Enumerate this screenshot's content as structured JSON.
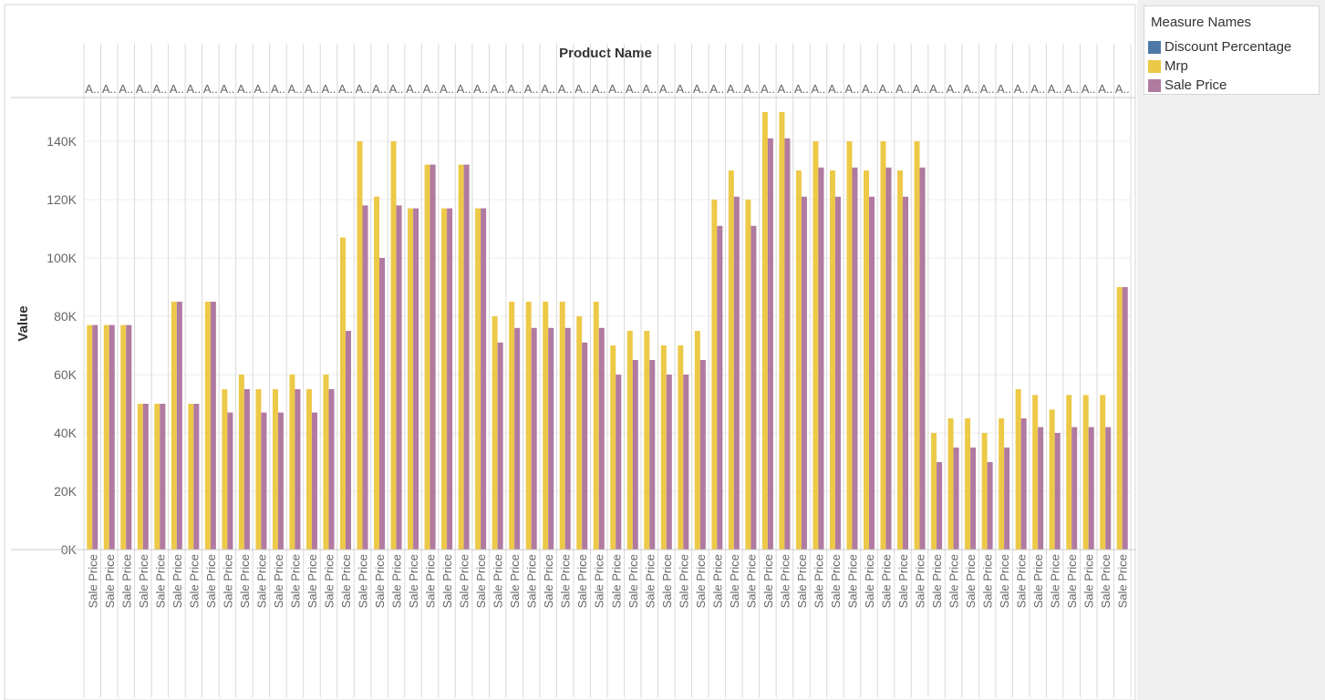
{
  "chart_data": {
    "type": "bar",
    "column_header_title": "Product Name",
    "column_header_label": "A..",
    "row_label": "Sale Price",
    "ylabel": "Value",
    "ylim": [
      0,
      155000
    ],
    "yticks": [
      0,
      20000,
      40000,
      60000,
      80000,
      100000,
      120000,
      140000
    ],
    "ytick_labels": [
      "0K",
      "20K",
      "40K",
      "60K",
      "80K",
      "100K",
      "120K",
      "140K"
    ],
    "gridlines": true,
    "legend_position": "right",
    "series": [
      {
        "name": "Discount Percentage",
        "color": "#4e79a7",
        "values": [
          0,
          0,
          0,
          0,
          0,
          0,
          0,
          0,
          0,
          0,
          0,
          0,
          0,
          0,
          0,
          0,
          0,
          0,
          0,
          0,
          0,
          0,
          0,
          0,
          0,
          0,
          0,
          0,
          0,
          0,
          0,
          0,
          0,
          0,
          0,
          0,
          0,
          0,
          0,
          0,
          0,
          0,
          0,
          0,
          0,
          0,
          0,
          0,
          0,
          0,
          0,
          0,
          0,
          0,
          0,
          0,
          0,
          0,
          0,
          0,
          0,
          0
        ]
      },
      {
        "name": "Mrp",
        "color": "#edc948",
        "values": [
          77000,
          77000,
          77000,
          50000,
          50000,
          85000,
          50000,
          85000,
          55000,
          60000,
          55000,
          55000,
          60000,
          55000,
          60000,
          107000,
          140000,
          121000,
          140000,
          117000,
          132000,
          117000,
          132000,
          117000,
          80000,
          85000,
          85000,
          85000,
          85000,
          80000,
          85000,
          70000,
          75000,
          75000,
          70000,
          70000,
          75000,
          120000,
          130000,
          120000,
          150000,
          150000,
          130000,
          140000,
          130000,
          140000,
          130000,
          140000,
          130000,
          140000,
          40000,
          45000,
          45000,
          40000,
          45000,
          55000,
          53000,
          48000,
          53000,
          53000,
          53000,
          90000
        ]
      },
      {
        "name": "Sale Price",
        "color": "#b07aa1",
        "values": [
          77000,
          77000,
          77000,
          50000,
          50000,
          85000,
          50000,
          85000,
          47000,
          55000,
          47000,
          47000,
          55000,
          47000,
          55000,
          75000,
          118000,
          100000,
          118000,
          117000,
          132000,
          117000,
          132000,
          117000,
          71000,
          76000,
          76000,
          76000,
          76000,
          71000,
          76000,
          60000,
          65000,
          65000,
          60000,
          60000,
          65000,
          111000,
          121000,
          111000,
          141000,
          141000,
          121000,
          131000,
          121000,
          131000,
          121000,
          131000,
          121000,
          131000,
          30000,
          35000,
          35000,
          30000,
          35000,
          45000,
          42000,
          40000,
          42000,
          42000,
          42000,
          90000
        ]
      }
    ]
  },
  "legend": {
    "title": "Measure Names",
    "items": [
      {
        "label": "Discount Percentage",
        "color": "#4e79a7"
      },
      {
        "label": "Mrp",
        "color": "#edc948"
      },
      {
        "label": "Sale Price",
        "color": "#b07aa1"
      }
    ]
  }
}
